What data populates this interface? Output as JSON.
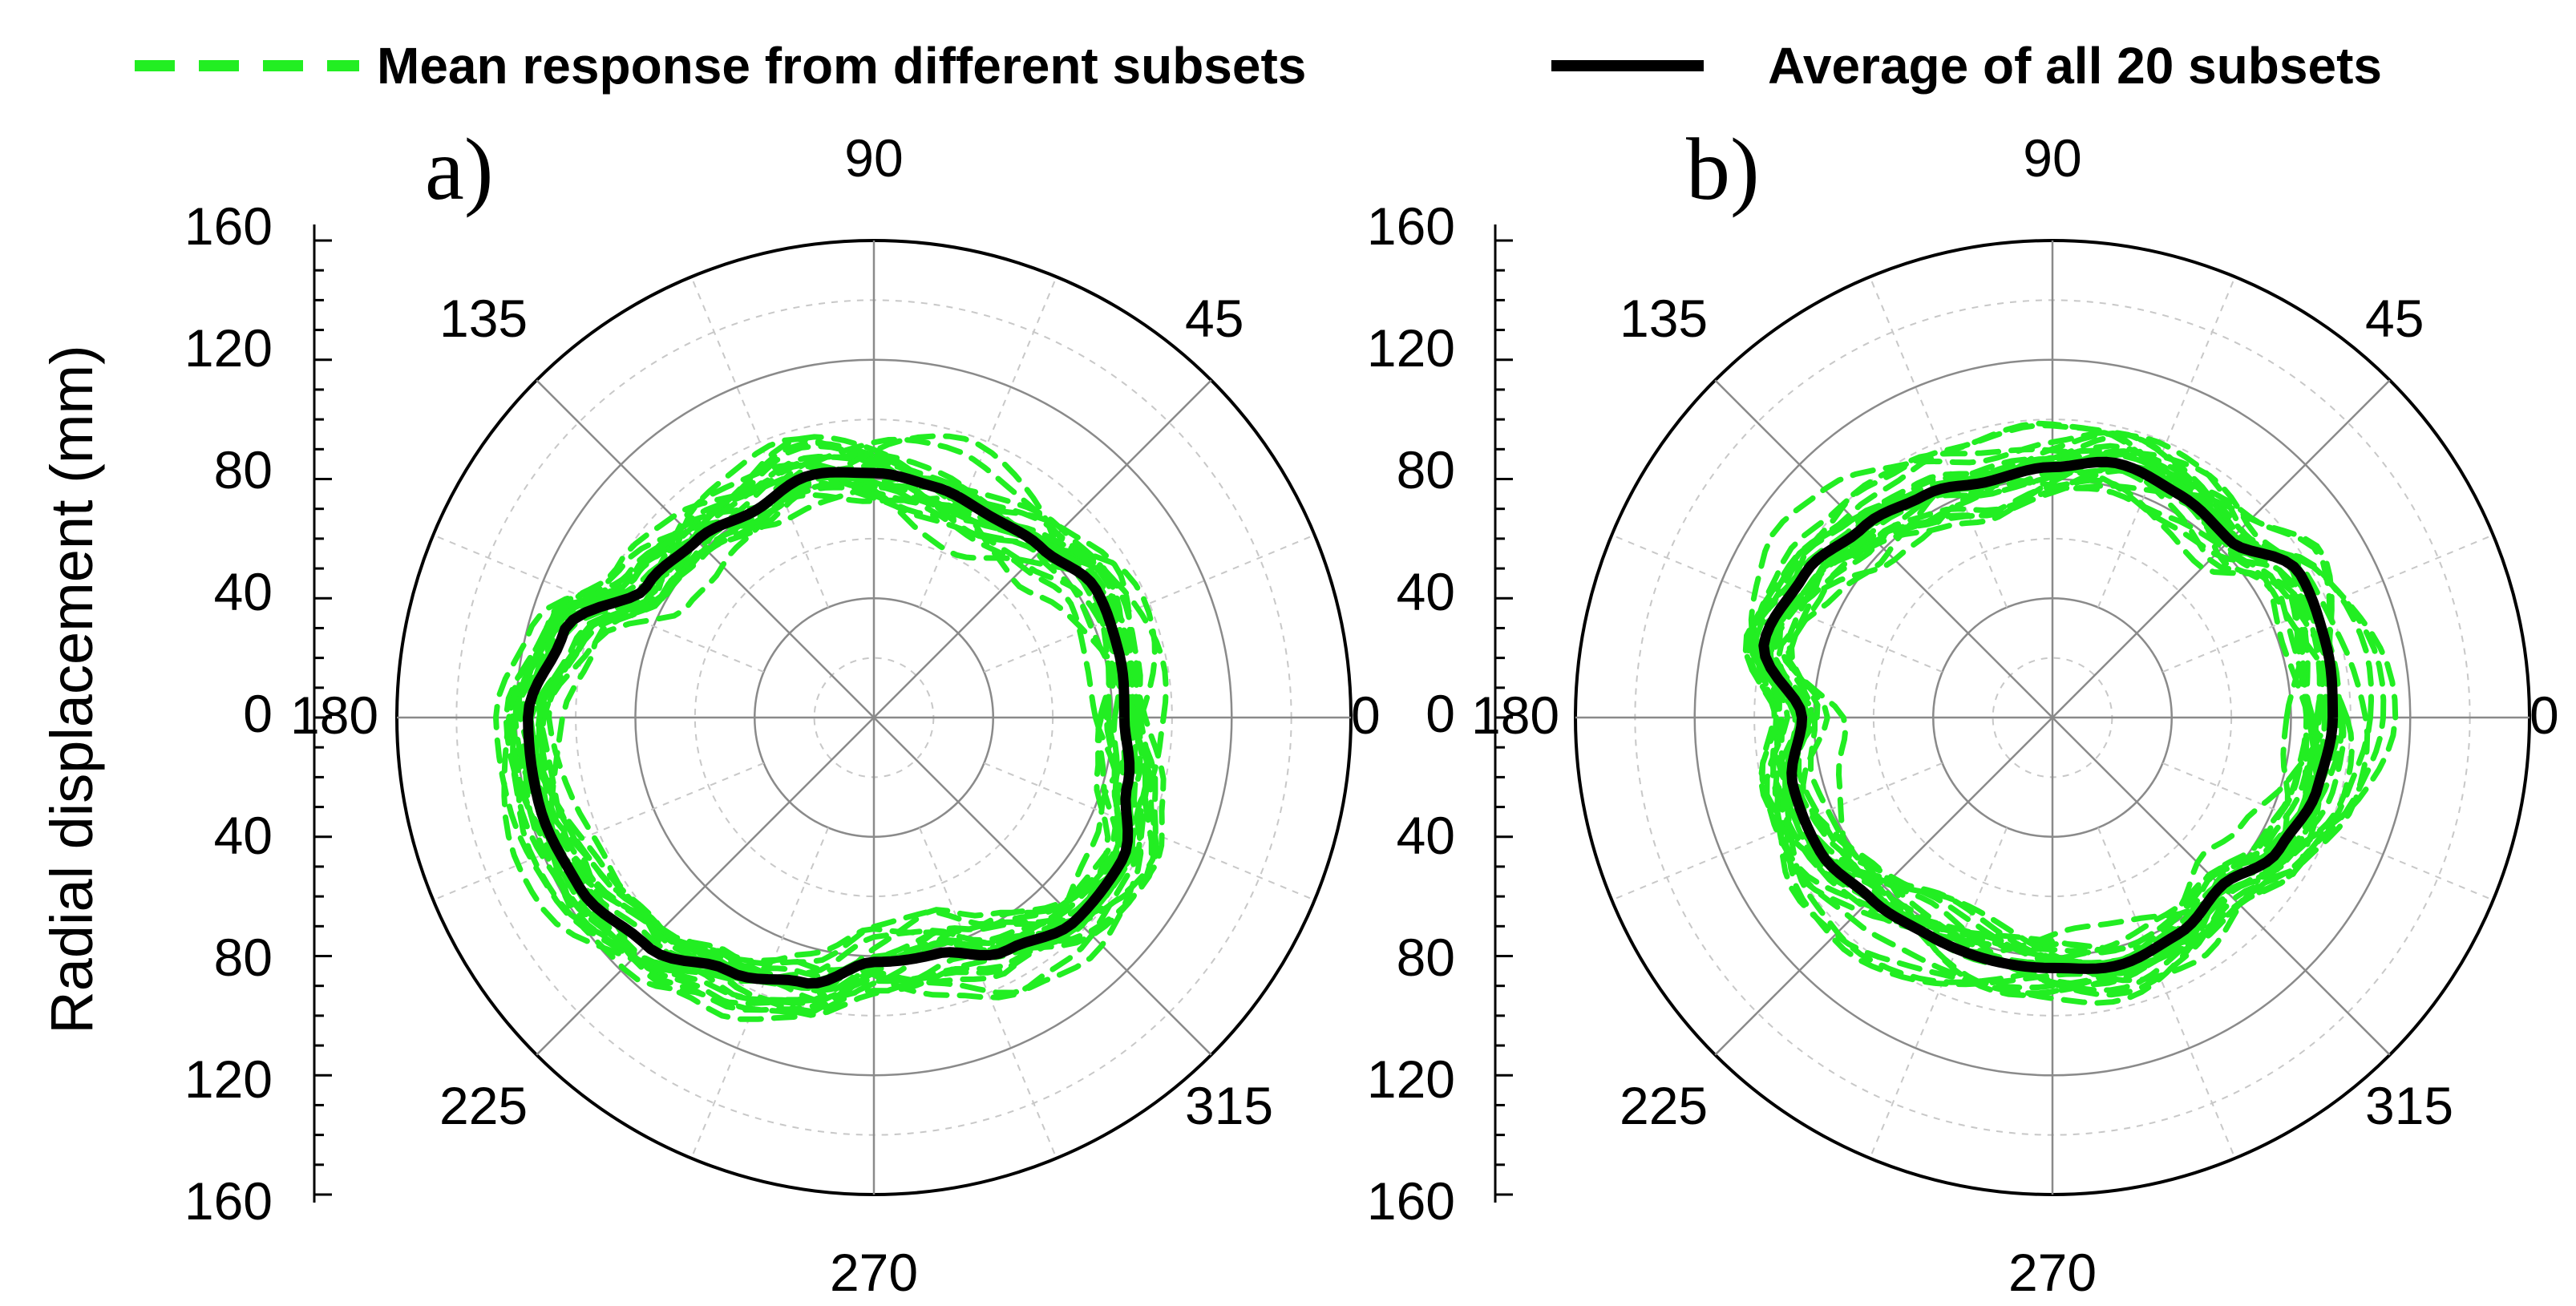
{
  "chart_data": {
    "type": "polar-line",
    "ylabel": "Radial displacement (mm)",
    "radial_ticks": [
      "160",
      "120",
      "80",
      "40",
      "0",
      "40",
      "80",
      "120",
      "160"
    ],
    "rlim": [
      0,
      160
    ],
    "radial_grid_major": [
      40,
      80,
      120,
      160
    ],
    "radial_grid_minor": [
      20,
      60,
      100,
      140
    ],
    "angle_labels": [
      "0",
      "45",
      "90",
      "135",
      "180",
      "225",
      "270",
      "315"
    ],
    "legend": [
      {
        "label": "Mean response from different subsets",
        "style": "dashed",
        "color": "#22ee22"
      },
      {
        "label": "Average of all 20 subsets",
        "style": "solid",
        "color": "#000000"
      }
    ],
    "n_subsets": 20,
    "panels": [
      {
        "label": "a)",
        "average_curve": {
          "theta_deg": [
            0,
            15,
            30,
            45,
            60,
            75,
            90,
            105,
            120,
            135,
            150,
            165,
            180,
            195,
            210,
            225,
            240,
            255,
            270,
            285,
            300,
            315,
            330,
            345,
            360
          ],
          "r_mm": [
            84,
            85,
            86,
            80,
            78,
            80,
            82,
            84,
            80,
            84,
            88,
            108,
            116,
            116,
            114,
            108,
            98,
            92,
            82,
            82,
            90,
            96,
            96,
            88,
            84
          ]
        },
        "subset_spread_mm": 12
      },
      {
        "label": "b)",
        "average_curve": {
          "theta_deg": [
            0,
            15,
            30,
            45,
            60,
            75,
            90,
            105,
            120,
            135,
            150,
            165,
            180,
            195,
            210,
            225,
            240,
            255,
            270,
            285,
            300,
            315,
            330,
            345,
            360
          ],
          "r_mm": [
            94,
            95,
            96,
            84,
            86,
            88,
            84,
            82,
            86,
            90,
            96,
            100,
            84,
            90,
            90,
            86,
            84,
            84,
            84,
            86,
            84,
            80,
            88,
            92,
            94
          ]
        },
        "subset_spread_mm": 12
      }
    ]
  },
  "colors": {
    "subset_line": "#22ee22",
    "average_line": "#000000",
    "grid_major": "#8a8a8a",
    "grid_minor": "#c8c8c8"
  }
}
